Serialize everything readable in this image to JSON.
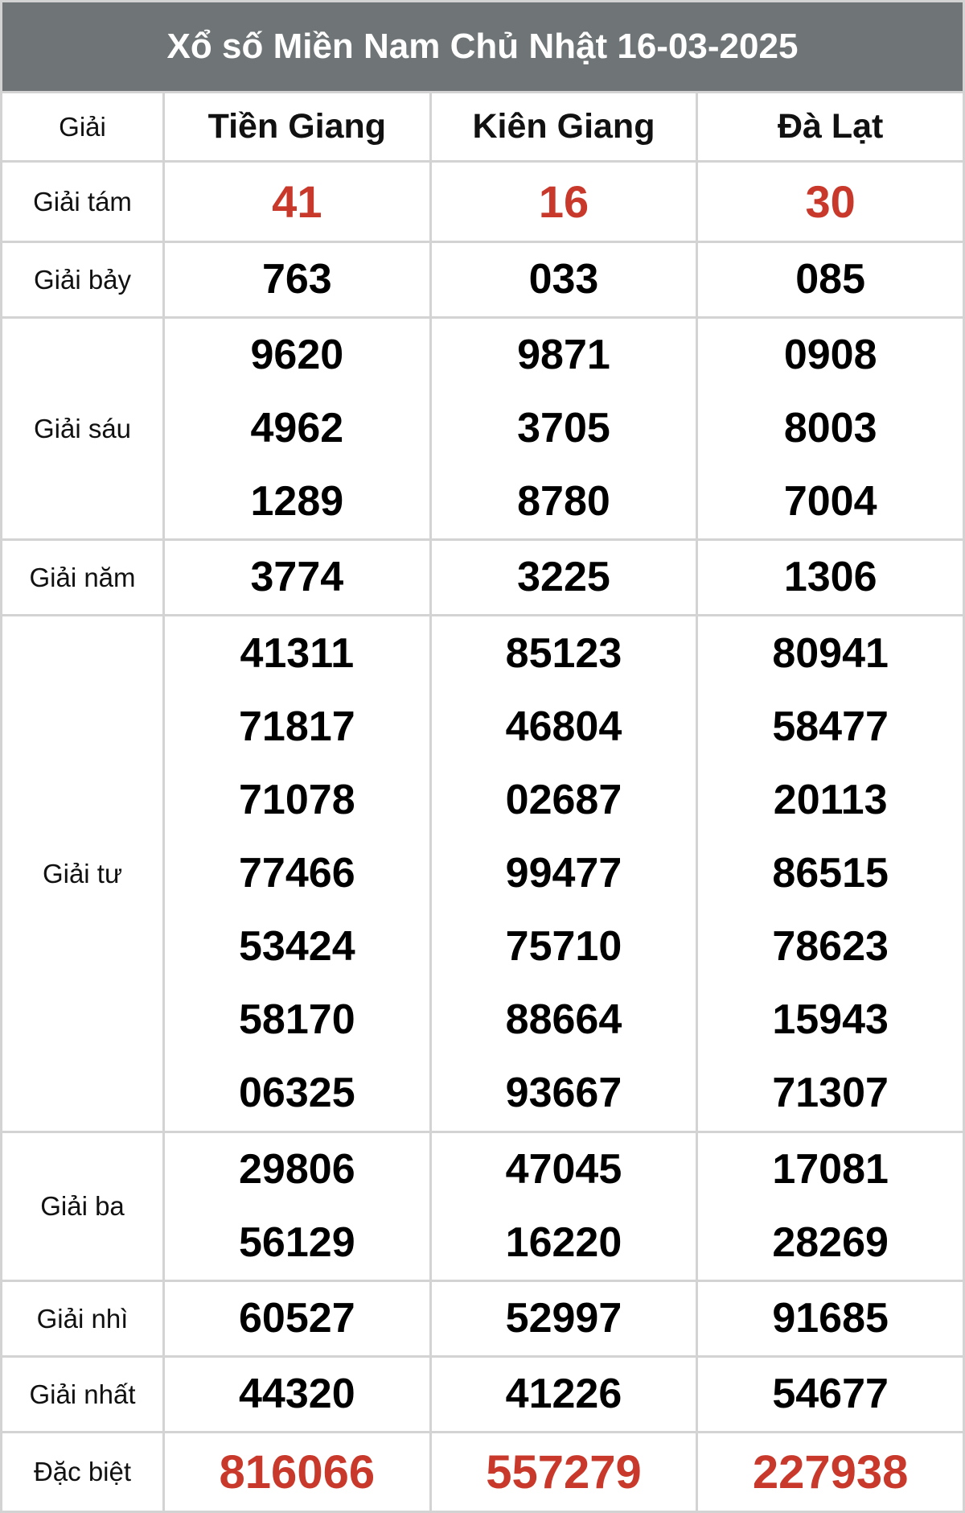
{
  "title": "Xổ số Miền Nam Chủ Nhật 16-03-2025",
  "header": {
    "label": "Giải",
    "provinces": [
      "Tiền Giang",
      "Kiên Giang",
      "Đà Lạt"
    ]
  },
  "colors": {
    "header_bg": "#6f7577",
    "highlight": "#c9392b"
  },
  "rows": [
    {
      "label": "Giải tám",
      "values": [
        [
          "41"
        ],
        [
          "16"
        ],
        [
          "30"
        ]
      ]
    },
    {
      "label": "Giải bảy",
      "values": [
        [
          "763"
        ],
        [
          "033"
        ],
        [
          "085"
        ]
      ]
    },
    {
      "label": "Giải sáu",
      "values": [
        [
          "9620",
          "4962",
          "1289"
        ],
        [
          "9871",
          "3705",
          "8780"
        ],
        [
          "0908",
          "8003",
          "7004"
        ]
      ]
    },
    {
      "label": "Giải năm",
      "values": [
        [
          "3774"
        ],
        [
          "3225"
        ],
        [
          "1306"
        ]
      ]
    },
    {
      "label": "Giải tư",
      "values": [
        [
          "41311",
          "71817",
          "71078",
          "77466",
          "53424",
          "58170",
          "06325"
        ],
        [
          "85123",
          "46804",
          "02687",
          "99477",
          "75710",
          "88664",
          "93667"
        ],
        [
          "80941",
          "58477",
          "20113",
          "86515",
          "78623",
          "15943",
          "71307"
        ]
      ]
    },
    {
      "label": "Giải ba",
      "values": [
        [
          "29806",
          "56129"
        ],
        [
          "47045",
          "16220"
        ],
        [
          "17081",
          "28269"
        ]
      ]
    },
    {
      "label": "Giải nhì",
      "values": [
        [
          "60527"
        ],
        [
          "52997"
        ],
        [
          "91685"
        ]
      ]
    },
    {
      "label": "Giải nhất",
      "values": [
        [
          "44320"
        ],
        [
          "41226"
        ],
        [
          "54677"
        ]
      ]
    },
    {
      "label": "Đặc biệt",
      "values": [
        [
          "816066"
        ],
        [
          "557279"
        ],
        [
          "227938"
        ]
      ]
    }
  ]
}
